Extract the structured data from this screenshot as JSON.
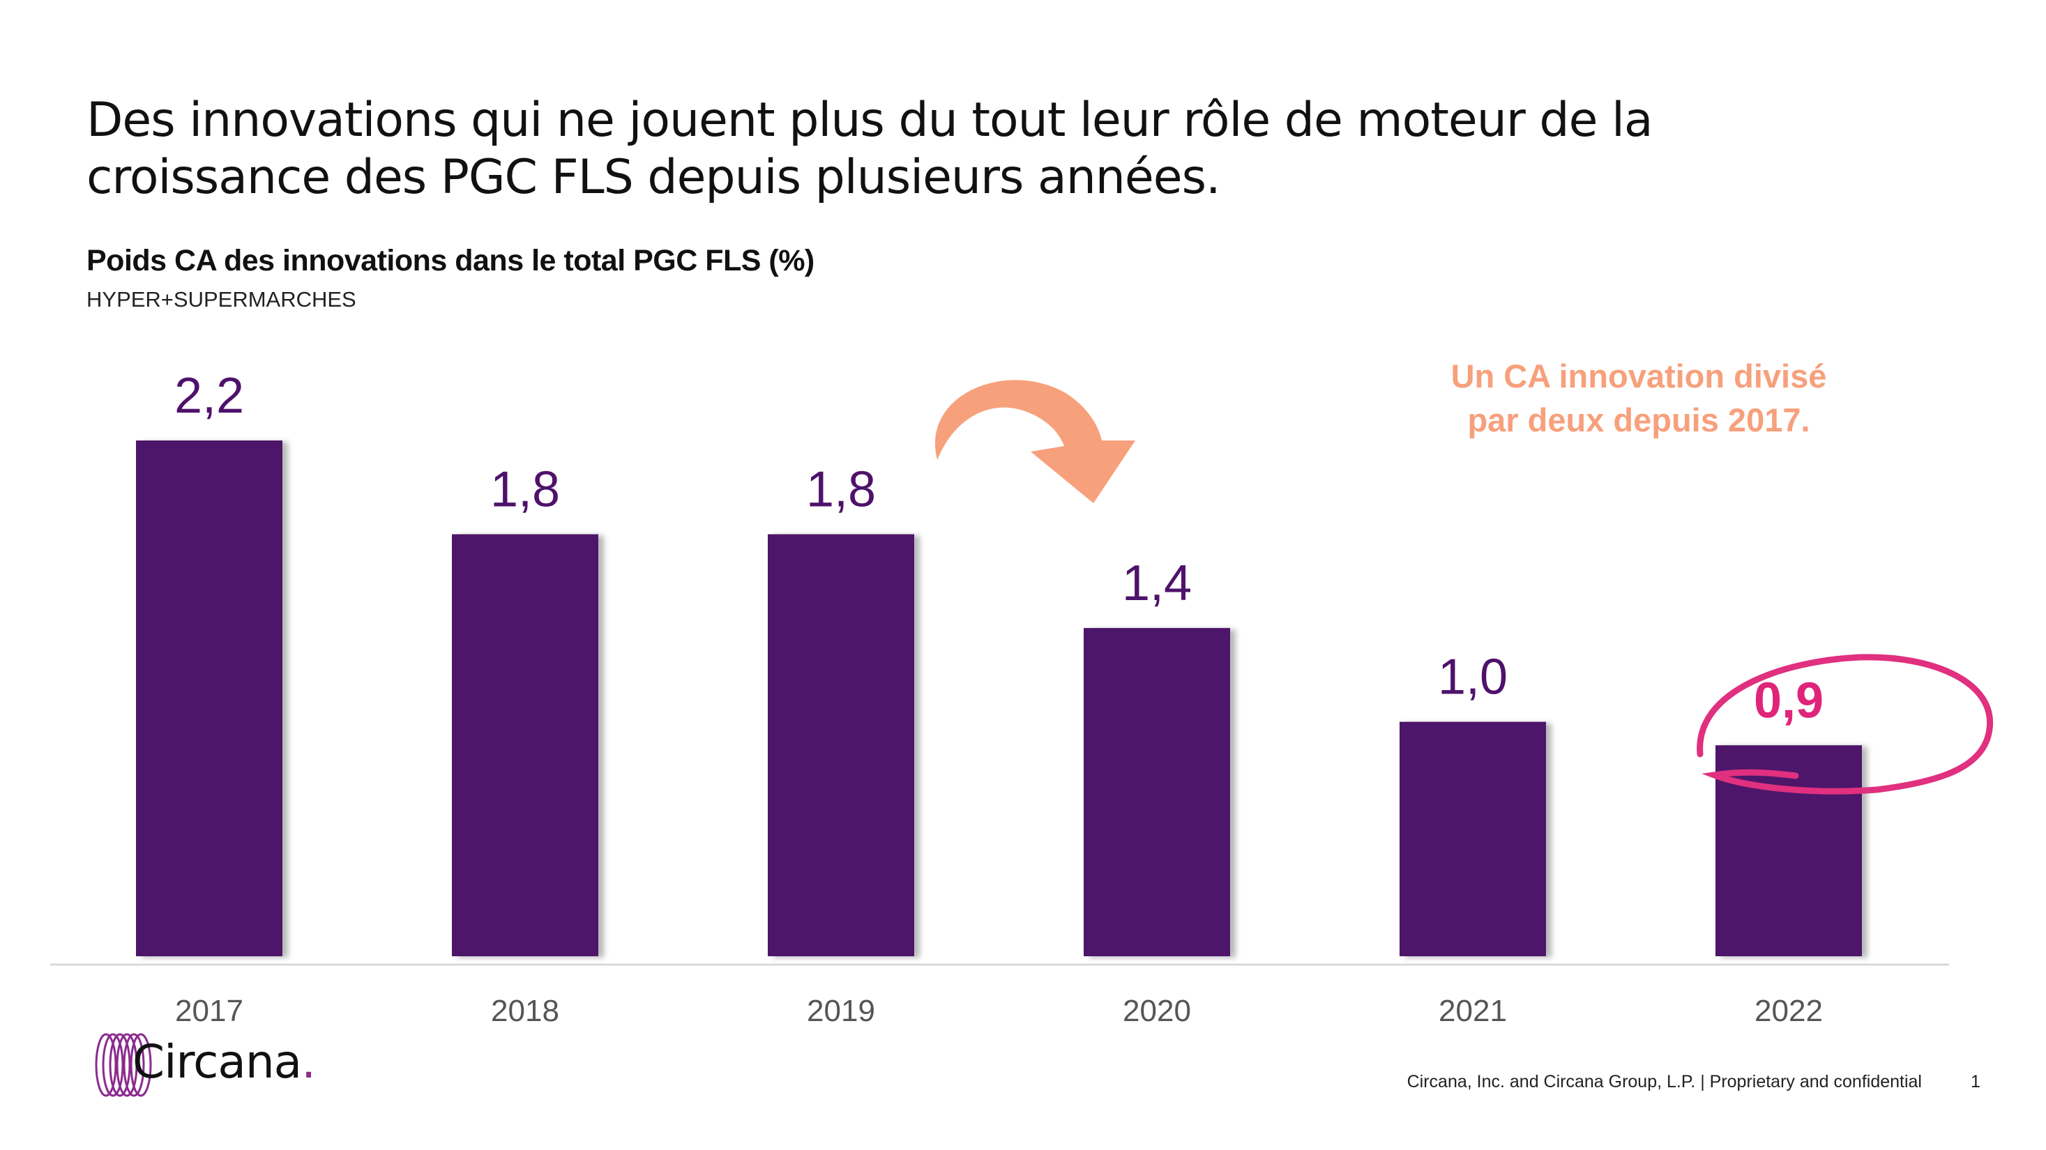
{
  "slide": {
    "headline": "Des innovations qui ne jouent plus du tout leur rôle de moteur de la croissance des PGC FLS depuis plusieurs années.",
    "page_number": "1"
  },
  "chart_data": {
    "type": "bar",
    "title": "Poids CA des innovations dans le total PGC FLS (%)",
    "subtitle": "HYPER+SUPERMARCHES",
    "categories": [
      "2017",
      "2018",
      "2019",
      "2020",
      "2021",
      "2022"
    ],
    "values": [
      2.2,
      1.8,
      1.8,
      1.4,
      1.0,
      0.9
    ],
    "value_labels": [
      "2,2",
      "1,8",
      "1,8",
      "1,4",
      "1,0",
      "0,9"
    ],
    "highlight_index": 5,
    "ylim": [
      0,
      2.2
    ],
    "xlabel": "",
    "ylabel": "",
    "grid": false,
    "legend": "none",
    "colors": {
      "bar": "#4e126b",
      "label": "#4e126b",
      "highlight_label": "#e0247a",
      "highlight_circle": "#e0307f",
      "arrow": "#f7a07c",
      "axis_tick_label": "#555555",
      "baseline": "#d9d9d9"
    }
  },
  "callout": {
    "line1": "Un CA innovation divisé",
    "line2": "par deux depuis 2017."
  },
  "logo": {
    "name": "Circana",
    "dot": ".",
    "icon": "circana-rings-icon",
    "color": "#8b2a8f"
  },
  "footer": {
    "text": "Circana, Inc. and Circana Group, L.P. |  Proprietary and confidential"
  }
}
